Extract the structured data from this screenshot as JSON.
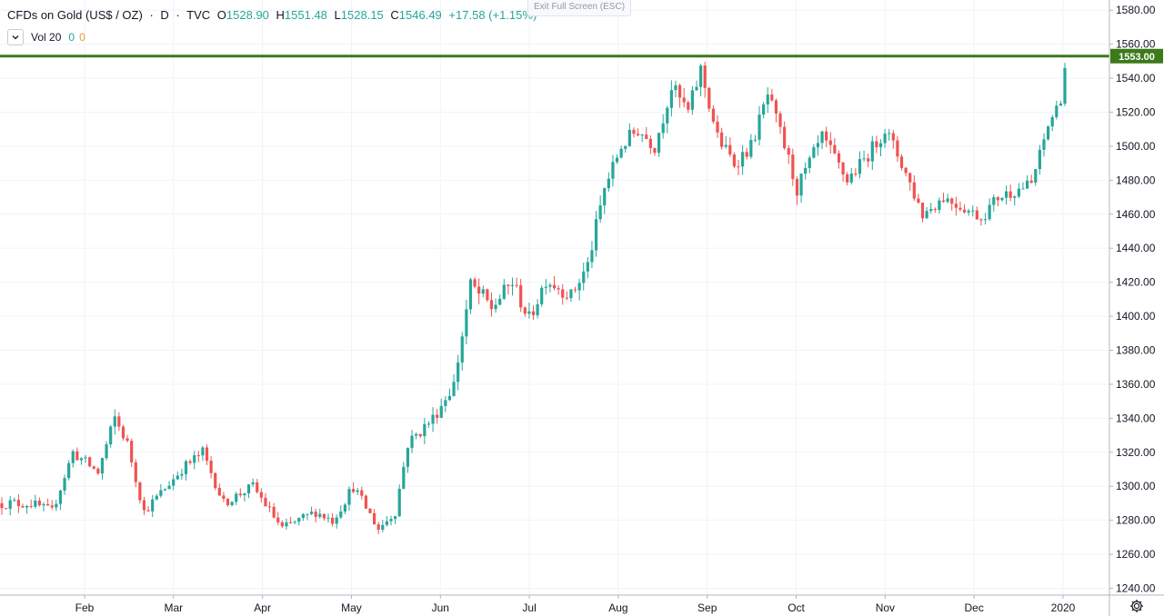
{
  "legend": {
    "title": "CFDs on Gold (US$ / OZ)",
    "sep": "·",
    "interval": "D",
    "exchange": "TVC",
    "open_label": "O",
    "open": "1528.90",
    "high_label": "H",
    "high": "1551.48",
    "low_label": "L",
    "low": "1528.15",
    "close_label": "C",
    "close": "1546.49",
    "change": "+17.58 (+1.15%)"
  },
  "volume": {
    "label": "Vol 20",
    "value1": "0",
    "value2": "0"
  },
  "exit_fullscreen": "Exit Full Screen (ESC)",
  "colors": {
    "up": "#26a69a",
    "down": "#ef5350",
    "level_line": "#3d7a1a",
    "grid": "#f0f3fa",
    "axis_text": "#131722"
  },
  "icons": {
    "chevron": "chevron-down-icon",
    "settings": "gear-icon"
  },
  "chart_data": {
    "type": "candlestick",
    "price_level": {
      "value": 1553.0,
      "label": "1553.00"
    },
    "y_range": [
      1236,
      1586
    ],
    "y_ticks": [
      1240,
      1260,
      1280,
      1300,
      1320,
      1340,
      1360,
      1380,
      1400,
      1420,
      1440,
      1460,
      1480,
      1500,
      1520,
      1540,
      1560,
      1580
    ],
    "x_labels": [
      "Feb",
      "Mar",
      "Apr",
      "May",
      "Jun",
      "Jul",
      "Aug",
      "Sep",
      "Oct",
      "Nov",
      "Dec",
      "2020"
    ],
    "segments": [
      {
        "start": 1290,
        "end": 1290,
        "n": 8,
        "noise": 7
      },
      {
        "start": 1290,
        "end": 1285,
        "n": 5,
        "noise": 6
      },
      {
        "start": 1285,
        "end": 1320,
        "n": 5,
        "noise": 6
      },
      {
        "start": 1320,
        "end": 1308,
        "n": 6,
        "noise": 7
      },
      {
        "start": 1308,
        "end": 1340,
        "n": 4,
        "noise": 8
      },
      {
        "start": 1340,
        "end": 1325,
        "n": 3,
        "noise": 6
      },
      {
        "start": 1325,
        "end": 1285,
        "n": 4,
        "noise": 7
      },
      {
        "start": 1285,
        "end": 1310,
        "n": 9,
        "noise": 6
      },
      {
        "start": 1310,
        "end": 1320,
        "n": 5,
        "noise": 7
      },
      {
        "start": 1320,
        "end": 1290,
        "n": 5,
        "noise": 6
      },
      {
        "start": 1290,
        "end": 1300,
        "n": 7,
        "noise": 6
      },
      {
        "start": 1300,
        "end": 1275,
        "n": 7,
        "noise": 6
      },
      {
        "start": 1275,
        "end": 1285,
        "n": 8,
        "noise": 6
      },
      {
        "start": 1285,
        "end": 1280,
        "n": 4,
        "noise": 6
      },
      {
        "start": 1280,
        "end": 1300,
        "n": 5,
        "noise": 7
      },
      {
        "start": 1300,
        "end": 1275,
        "n": 6,
        "noise": 6
      },
      {
        "start": 1275,
        "end": 1285,
        "n": 4,
        "noise": 6
      },
      {
        "start": 1285,
        "end": 1325,
        "n": 3,
        "noise": 8
      },
      {
        "start": 1325,
        "end": 1340,
        "n": 6,
        "noise": 8
      },
      {
        "start": 1340,
        "end": 1360,
        "n": 5,
        "noise": 8
      },
      {
        "start": 1360,
        "end": 1418,
        "n": 4,
        "noise": 10
      },
      {
        "start": 1418,
        "end": 1405,
        "n": 5,
        "noise": 12
      },
      {
        "start": 1405,
        "end": 1420,
        "n": 5,
        "noise": 10
      },
      {
        "start": 1420,
        "end": 1398,
        "n": 4,
        "noise": 10
      },
      {
        "start": 1398,
        "end": 1422,
        "n": 4,
        "noise": 10
      },
      {
        "start": 1422,
        "end": 1412,
        "n": 6,
        "noise": 9
      },
      {
        "start": 1412,
        "end": 1430,
        "n": 4,
        "noise": 10
      },
      {
        "start": 1430,
        "end": 1475,
        "n": 4,
        "noise": 10
      },
      {
        "start": 1475,
        "end": 1500,
        "n": 4,
        "noise": 9
      },
      {
        "start": 1500,
        "end": 1510,
        "n": 4,
        "noise": 10
      },
      {
        "start": 1510,
        "end": 1500,
        "n": 4,
        "noise": 9
      },
      {
        "start": 1500,
        "end": 1535,
        "n": 4,
        "noise": 10
      },
      {
        "start": 1535,
        "end": 1520,
        "n": 4,
        "noise": 10
      },
      {
        "start": 1520,
        "end": 1545,
        "n": 3,
        "noise": 10
      },
      {
        "start": 1545,
        "end": 1505,
        "n": 4,
        "noise": 10
      },
      {
        "start": 1505,
        "end": 1490,
        "n": 4,
        "noise": 9
      },
      {
        "start": 1490,
        "end": 1500,
        "n": 4,
        "noise": 9
      },
      {
        "start": 1500,
        "end": 1530,
        "n": 4,
        "noise": 9
      },
      {
        "start": 1530,
        "end": 1500,
        "n": 4,
        "noise": 10
      },
      {
        "start": 1500,
        "end": 1475,
        "n": 3,
        "noise": 10
      },
      {
        "start": 1475,
        "end": 1505,
        "n": 6,
        "noise": 9
      },
      {
        "start": 1505,
        "end": 1480,
        "n": 6,
        "noise": 9
      },
      {
        "start": 1480,
        "end": 1495,
        "n": 5,
        "noise": 8
      },
      {
        "start": 1495,
        "end": 1510,
        "n": 4,
        "noise": 9
      },
      {
        "start": 1510,
        "end": 1490,
        "n": 4,
        "noise": 9
      },
      {
        "start": 1490,
        "end": 1460,
        "n": 5,
        "noise": 9
      },
      {
        "start": 1460,
        "end": 1470,
        "n": 5,
        "noise": 8
      },
      {
        "start": 1470,
        "end": 1465,
        "n": 4,
        "noise": 8
      },
      {
        "start": 1465,
        "end": 1458,
        "n": 5,
        "noise": 7
      },
      {
        "start": 1458,
        "end": 1470,
        "n": 4,
        "noise": 8
      },
      {
        "start": 1470,
        "end": 1475,
        "n": 5,
        "noise": 8
      },
      {
        "start": 1475,
        "end": 1478,
        "n": 3,
        "noise": 7
      },
      {
        "start": 1478,
        "end": 1512,
        "n": 4,
        "noise": 7
      },
      {
        "start": 1512,
        "end": 1528,
        "n": 3,
        "noise": 6
      },
      {
        "start": 1528,
        "end": 1546.49,
        "n": 1,
        "noise": 6
      }
    ]
  }
}
